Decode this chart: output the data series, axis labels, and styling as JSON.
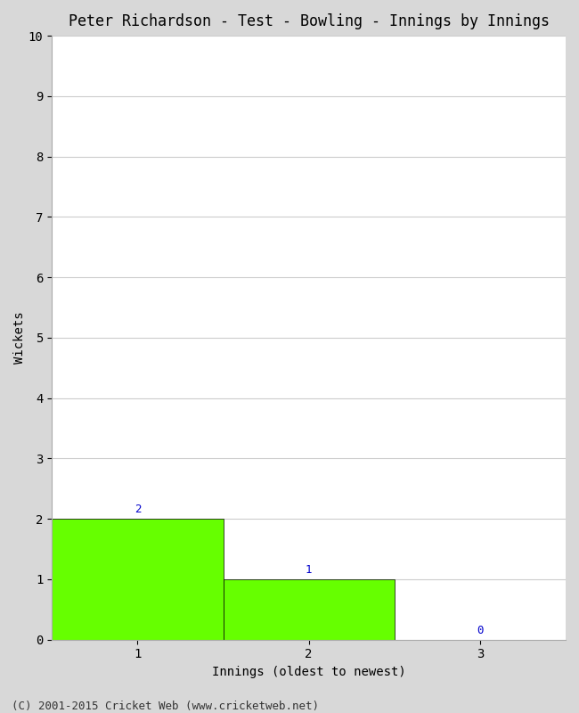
{
  "title": "Peter Richardson - Test - Bowling - Innings by Innings",
  "xlabel": "Innings (oldest to newest)",
  "ylabel": "Wickets",
  "categories": [
    1,
    2,
    3
  ],
  "values": [
    2,
    1,
    0
  ],
  "bar_color": "#66ff00",
  "bar_edge_color": "#000000",
  "ylim": [
    0,
    10
  ],
  "yticks": [
    0,
    1,
    2,
    3,
    4,
    5,
    6,
    7,
    8,
    9,
    10
  ],
  "xticks": [
    1,
    2,
    3
  ],
  "xlim": [
    0.5,
    3.5
  ],
  "background_color": "#d8d8d8",
  "plot_bg_color": "#ffffff",
  "label_color": "#0000cc",
  "footer": "(C) 2001-2015 Cricket Web (www.cricketweb.net)",
  "title_fontsize": 12,
  "axis_label_fontsize": 10,
  "tick_fontsize": 10,
  "annotation_fontsize": 9,
  "footer_fontsize": 9
}
